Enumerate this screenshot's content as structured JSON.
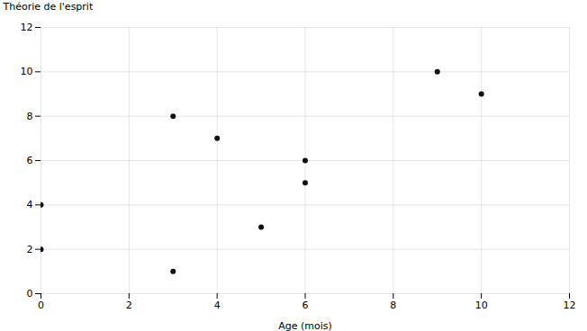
{
  "chart_data": {
    "type": "scatter",
    "x": [
      0,
      0,
      3,
      3,
      4,
      5,
      6,
      6,
      9,
      10
    ],
    "y": [
      4,
      2,
      8,
      1,
      7,
      3,
      6,
      5,
      10,
      9
    ],
    "xlabel": "Age (mois)",
    "ylabel": "Théorie de l'esprit",
    "xlim": [
      0,
      12
    ],
    "ylim": [
      0,
      12
    ],
    "xticks": [
      0,
      2,
      4,
      6,
      8,
      10,
      12
    ],
    "yticks": [
      0,
      2,
      4,
      6,
      8,
      10,
      12
    ],
    "color": "#111111",
    "marker": "circle",
    "grid": true
  }
}
